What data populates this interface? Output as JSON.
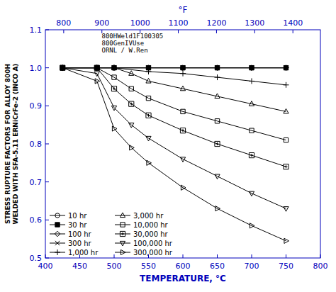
{
  "chart_data": {
    "type": "line",
    "ylabel": "STRESS RUPTURE FACTORS FOR ALLOY 800H\nWELDED WITH SFA-5.11 ERNiCrFe-2 (INCO A)",
    "xlabel": "TEMPERATURE, °C",
    "x2label": "°F",
    "annotation": "800HWeld1F100305\n800GenIVUse\nORNL / W.Ren",
    "xlim": [
      400,
      800
    ],
    "xticks": [
      400,
      450,
      500,
      550,
      600,
      650,
      700,
      750,
      800
    ],
    "x2lim": [
      752,
      1472
    ],
    "x2ticks": [
      800,
      900,
      1000,
      1100,
      1200,
      1300,
      1400
    ],
    "ylim": [
      0.5,
      1.1
    ],
    "yticks": [
      0.5,
      0.6,
      0.7,
      0.8,
      0.9,
      {
        "value": 1.0,
        "label": "1.0"
      },
      1.1
    ],
    "grid": false,
    "legend": "lower left",
    "series": [
      {
        "name": "10 hr",
        "color": "#000000",
        "marker": "circle",
        "x": [
          425,
          475,
          500,
          550,
          600,
          650,
          700,
          750
        ],
        "values": [
          1.0,
          1.0,
          1.0,
          1.0,
          1.0,
          1.0,
          1.0,
          1.0
        ]
      },
      {
        "name": "30 hr",
        "color": "#000000",
        "marker": "square-filled",
        "x": [
          425,
          475,
          500,
          550,
          600,
          650,
          700,
          750
        ],
        "values": [
          1.0,
          1.0,
          1.0,
          1.0,
          1.0,
          1.0,
          1.0,
          1.0
        ]
      },
      {
        "name": "100 hr",
        "color": "#000000",
        "marker": "diamond",
        "x": [
          425,
          475,
          500,
          550,
          600,
          650,
          700,
          750
        ],
        "values": [
          1.0,
          1.0,
          1.0,
          1.0,
          1.0,
          1.0,
          1.0,
          1.0
        ]
      },
      {
        "name": "300 hr",
        "color": "#000000",
        "marker": "x",
        "x": [
          425,
          475,
          500,
          550,
          600,
          650,
          700,
          750
        ],
        "values": [
          1.0,
          1.0,
          1.0,
          1.0,
          1.0,
          1.0,
          1.0,
          1.0
        ]
      },
      {
        "name": "1,000 hr",
        "color": "#000000",
        "marker": "plus",
        "x": [
          425,
          475,
          500,
          550,
          600,
          650,
          700,
          750
        ],
        "values": [
          1.0,
          1.0,
          1.0,
          0.99,
          0.985,
          0.975,
          0.965,
          0.955
        ]
      },
      {
        "name": "3,000 hr",
        "color": "#000000",
        "marker": "triangle-up",
        "x": [
          425,
          475,
          500,
          525,
          550,
          600,
          650,
          700,
          750
        ],
        "values": [
          1.0,
          1.0,
          1.0,
          0.985,
          0.965,
          0.945,
          0.925,
          0.905,
          0.885
        ]
      },
      {
        "name": "10,000 hr",
        "color": "#000000",
        "marker": "square",
        "x": [
          425,
          475,
          500,
          525,
          550,
          600,
          650,
          700,
          750
        ],
        "values": [
          1.0,
          1.0,
          0.975,
          0.945,
          0.92,
          0.885,
          0.86,
          0.835,
          0.81
        ]
      },
      {
        "name": "30,000 hr",
        "color": "#000000",
        "marker": "square-plus",
        "x": [
          425,
          475,
          500,
          525,
          550,
          600,
          650,
          700,
          750
        ],
        "values": [
          1.0,
          1.0,
          0.945,
          0.905,
          0.875,
          0.835,
          0.8,
          0.77,
          0.74
        ]
      },
      {
        "name": "100,000 hr",
        "color": "#000000",
        "marker": "triangle-down",
        "x": [
          425,
          475,
          500,
          525,
          550,
          600,
          650,
          700,
          750
        ],
        "values": [
          1.0,
          0.985,
          0.895,
          0.85,
          0.815,
          0.76,
          0.715,
          0.67,
          0.63
        ]
      },
      {
        "name": "300,000 hr",
        "color": "#000000",
        "marker": "triangle-right",
        "x": [
          425,
          475,
          500,
          525,
          550,
          600,
          650,
          700,
          750
        ],
        "values": [
          1.0,
          0.965,
          0.84,
          0.79,
          0.75,
          0.685,
          0.63,
          0.585,
          0.545
        ]
      }
    ]
  }
}
